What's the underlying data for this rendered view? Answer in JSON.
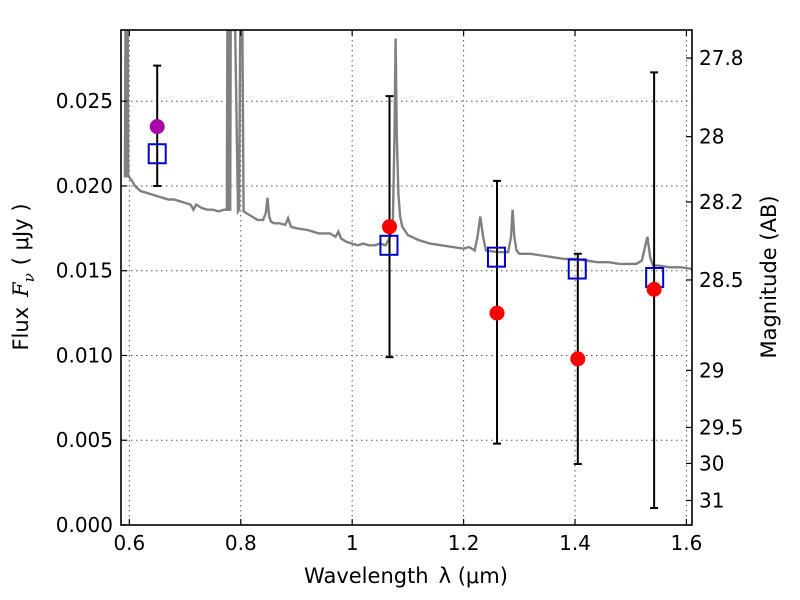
{
  "chart_data": {
    "type": "scatter",
    "title": "",
    "xlabel_text": "Wavelength",
    "xlabel_math": "λ (μm)",
    "ylabel_text": "Flux",
    "ylabel_math": "F",
    "ylabel_sub": "ν",
    "ylabel_unit": "( μJy )",
    "y2label": "Magnitude (AB)",
    "xlim": [
      0.585,
      1.61
    ],
    "ylim": [
      0.0,
      0.0292
    ],
    "grid": true,
    "x_ticks": [
      0.6,
      0.8,
      1.0,
      1.2,
      1.4,
      1.6
    ],
    "x_tick_labels": [
      "0.6",
      "0.8",
      "1",
      "1.2",
      "1.4",
      "1.6"
    ],
    "y_ticks": [
      0.0,
      0.005,
      0.01,
      0.015,
      0.02,
      0.025
    ],
    "y_tick_labels": [
      "0.000",
      "0.005",
      "0.010",
      "0.015",
      "0.020",
      "0.025"
    ],
    "y2_ticks": [
      27.8,
      28,
      28.2,
      28.5,
      29,
      29.5,
      30,
      31
    ],
    "y2_tick_labels": [
      "27.8",
      "28",
      "28.2",
      "28.5",
      "29",
      "29.5",
      "30",
      "31"
    ],
    "series": [
      {
        "kind": "line",
        "color": "#808080",
        "x": [
          0.592,
          0.593,
          0.594,
          0.595,
          0.596,
          0.597,
          0.598,
          0.6,
          0.605,
          0.61,
          0.62,
          0.63,
          0.64,
          0.65,
          0.66,
          0.67,
          0.68,
          0.69,
          0.7,
          0.71,
          0.715,
          0.72,
          0.73,
          0.74,
          0.75,
          0.76,
          0.77,
          0.775,
          0.776,
          0.778,
          0.779,
          0.781,
          0.782,
          0.79,
          0.795,
          0.797,
          0.799,
          0.803,
          0.805,
          0.81,
          0.82,
          0.83,
          0.84,
          0.845,
          0.848,
          0.851,
          0.854,
          0.86,
          0.87,
          0.88,
          0.885,
          0.89,
          0.9,
          0.92,
          0.94,
          0.96,
          0.97,
          0.975,
          0.98,
          0.99,
          1.0,
          1.01,
          1.02,
          1.03,
          1.04,
          1.05,
          1.06,
          1.065,
          1.07,
          1.073,
          1.076,
          1.078,
          1.08,
          1.083,
          1.086,
          1.09,
          1.1,
          1.12,
          1.14,
          1.16,
          1.18,
          1.2,
          1.21,
          1.22,
          1.225,
          1.23,
          1.235,
          1.24,
          1.26,
          1.28,
          1.285,
          1.288,
          1.291,
          1.295,
          1.3,
          1.32,
          1.34,
          1.36,
          1.38,
          1.4,
          1.42,
          1.44,
          1.46,
          1.48,
          1.5,
          1.51,
          1.52,
          1.525,
          1.53,
          1.535,
          1.54,
          1.55,
          1.57,
          1.59,
          1.61
        ],
        "y": [
          0.0205,
          0.03,
          0.0205,
          0.03,
          0.0205,
          0.03,
          0.0206,
          0.0205,
          0.0203,
          0.02,
          0.0197,
          0.0196,
          0.0195,
          0.0194,
          0.0193,
          0.0192,
          0.0192,
          0.0191,
          0.019,
          0.0189,
          0.0186,
          0.0189,
          0.0187,
          0.0186,
          0.0186,
          0.0185,
          0.0186,
          0.0186,
          0.03,
          0.03,
          0.0186,
          0.0186,
          0.03,
          0.03,
          0.0185,
          0.0186,
          0.03,
          0.03,
          0.0185,
          0.0184,
          0.0182,
          0.018,
          0.018,
          0.0184,
          0.0193,
          0.0182,
          0.0179,
          0.0178,
          0.0178,
          0.0177,
          0.0181,
          0.0176,
          0.0175,
          0.0174,
          0.0172,
          0.0172,
          0.017,
          0.0173,
          0.0169,
          0.0167,
          0.0166,
          0.0165,
          0.0166,
          0.0165,
          0.0165,
          0.0166,
          0.0165,
          0.0168,
          0.0172,
          0.018,
          0.023,
          0.0287,
          0.023,
          0.0195,
          0.0182,
          0.0176,
          0.0171,
          0.0168,
          0.0166,
          0.0165,
          0.0164,
          0.0163,
          0.0164,
          0.0162,
          0.017,
          0.0182,
          0.017,
          0.0162,
          0.0161,
          0.0161,
          0.017,
          0.0186,
          0.017,
          0.0162,
          0.016,
          0.016,
          0.0159,
          0.0158,
          0.0157,
          0.0157,
          0.0156,
          0.0155,
          0.0155,
          0.0154,
          0.0154,
          0.0154,
          0.0156,
          0.0163,
          0.017,
          0.0158,
          0.0153,
          0.0153,
          0.0152,
          0.0152,
          0.0151
        ]
      },
      {
        "kind": "markers",
        "marker": "square-open",
        "color": "#0000cc",
        "x": [
          0.65,
          1.066,
          1.259,
          1.404,
          1.543
        ],
        "y": [
          0.0219,
          0.0165,
          0.0158,
          0.0151,
          0.0146
        ]
      },
      {
        "kind": "errorbar",
        "color": "#000000",
        "x": [
          0.65,
          1.067,
          1.26,
          1.405,
          1.542
        ],
        "y": [
          0.0235,
          0.0176,
          0.0125,
          0.0098,
          0.0139
        ],
        "yerr_low": [
          0.0035,
          0.0077,
          0.0077,
          0.0062,
          0.0129
        ],
        "yerr_high": [
          0.0036,
          0.0077,
          0.0078,
          0.0062,
          0.0128
        ]
      },
      {
        "kind": "markers",
        "marker": "circle-filled",
        "colors": [
          "#aa00aa",
          "#ff0000",
          "#ff0000",
          "#ff0000",
          "#ff0000"
        ],
        "x": [
          0.65,
          1.067,
          1.26,
          1.405,
          1.542
        ],
        "y": [
          0.0235,
          0.0176,
          0.0125,
          0.0098,
          0.0139
        ]
      }
    ]
  }
}
